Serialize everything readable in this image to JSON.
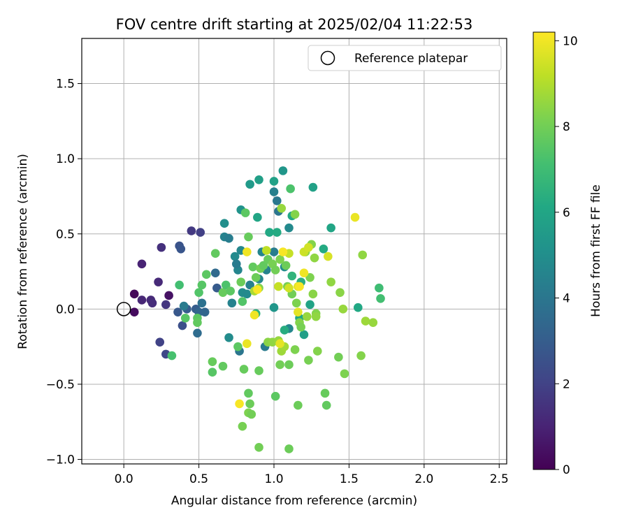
{
  "chart_data": {
    "type": "scatter",
    "title": "FOV centre drift starting at 2025/02/04 11:22:53",
    "xlabel": "Angular distance from reference (arcmin)",
    "ylabel": "Rotation from reference (arcmin)",
    "xlim": [
      -0.28,
      2.55
    ],
    "ylim": [
      -1.03,
      1.8
    ],
    "xticks": [
      0.0,
      0.5,
      1.0,
      1.5,
      2.0,
      2.5
    ],
    "xtick_labels": [
      "0.0",
      "0.5",
      "1.0",
      "1.5",
      "2.0",
      "2.5"
    ],
    "yticks": [
      -1.0,
      -0.5,
      0.0,
      0.5,
      1.0,
      1.5
    ],
    "ytick_labels": [
      "−1.0",
      "−0.5",
      "0.0",
      "0.5",
      "1.0",
      "1.5"
    ],
    "grid": true,
    "legend": {
      "position": "top-right",
      "entries": [
        "Reference platepar"
      ]
    },
    "colorbar": {
      "label": "Hours from first FF file",
      "colormap": "viridis",
      "range": [
        0,
        10.2
      ],
      "ticks": [
        0,
        2,
        4,
        6,
        8,
        10
      ],
      "tick_labels": [
        "0",
        "2",
        "4",
        "6",
        "8",
        "10"
      ]
    },
    "reference_point": {
      "x": 0.0,
      "y": 0.0
    },
    "points": [
      {
        "x": 0.07,
        "y": 0.1,
        "h": 0.2
      },
      {
        "x": 0.07,
        "y": -0.02,
        "h": 0.3
      },
      {
        "x": 0.3,
        "y": 0.09,
        "h": 0.5
      },
      {
        "x": 0.12,
        "y": 0.3,
        "h": 1.0
      },
      {
        "x": 0.12,
        "y": 0.06,
        "h": 1.1
      },
      {
        "x": 0.18,
        "y": 0.06,
        "h": 1.2
      },
      {
        "x": 0.19,
        "y": 0.04,
        "h": 1.3
      },
      {
        "x": 0.23,
        "y": 0.18,
        "h": 1.2
      },
      {
        "x": 0.25,
        "y": 0.41,
        "h": 1.4
      },
      {
        "x": 0.28,
        "y": 0.03,
        "h": 1.6
      },
      {
        "x": 0.24,
        "y": -0.22,
        "h": 2.0
      },
      {
        "x": 0.28,
        "y": -0.3,
        "h": 2.2
      },
      {
        "x": 0.45,
        "y": 0.52,
        "h": 1.7
      },
      {
        "x": 0.51,
        "y": 0.51,
        "h": 1.9
      },
      {
        "x": 0.37,
        "y": 0.42,
        "h": 2.6
      },
      {
        "x": 0.38,
        "y": 0.4,
        "h": 2.7
      },
      {
        "x": 0.36,
        "y": -0.02,
        "h": 2.8
      },
      {
        "x": 0.39,
        "y": -0.11,
        "h": 2.5
      },
      {
        "x": 0.42,
        "y": 0.0,
        "h": 3.0
      },
      {
        "x": 0.48,
        "y": 0.0,
        "h": 3.0
      },
      {
        "x": 0.5,
        "y": -0.02,
        "h": 3.3
      },
      {
        "x": 0.54,
        "y": -0.02,
        "h": 3.3
      },
      {
        "x": 0.52,
        "y": 0.04,
        "h": 3.8
      },
      {
        "x": 0.49,
        "y": -0.16,
        "h": 3.6
      },
      {
        "x": 0.4,
        "y": 0.02,
        "h": 4.2
      },
      {
        "x": 0.61,
        "y": 0.24,
        "h": 3.5
      },
      {
        "x": 0.62,
        "y": 0.14,
        "h": 2.9
      },
      {
        "x": 0.67,
        "y": 0.48,
        "h": 4.5
      },
      {
        "x": 0.7,
        "y": 0.47,
        "h": 4.3
      },
      {
        "x": 0.67,
        "y": 0.57,
        "h": 5.0
      },
      {
        "x": 0.74,
        "y": 0.35,
        "h": 4.8
      },
      {
        "x": 0.76,
        "y": 0.26,
        "h": 4.6
      },
      {
        "x": 0.78,
        "y": 0.39,
        "h": 4.7
      },
      {
        "x": 0.79,
        "y": 0.11,
        "h": 4.9
      },
      {
        "x": 0.82,
        "y": 0.1,
        "h": 4.8
      },
      {
        "x": 0.75,
        "y": 0.3,
        "h": 4.2
      },
      {
        "x": 0.72,
        "y": 0.04,
        "h": 4.5
      },
      {
        "x": 0.77,
        "y": -0.28,
        "h": 4.0
      },
      {
        "x": 0.7,
        "y": -0.19,
        "h": 4.9
      },
      {
        "x": 0.84,
        "y": 0.16,
        "h": 4.4
      },
      {
        "x": 0.9,
        "y": 0.2,
        "h": 4.7
      },
      {
        "x": 0.94,
        "y": -0.25,
        "h": 4.2
      },
      {
        "x": 0.92,
        "y": 0.38,
        "h": 4.6
      },
      {
        "x": 0.95,
        "y": 0.26,
        "h": 4.5
      },
      {
        "x": 1.0,
        "y": 0.38,
        "h": 4.3
      },
      {
        "x": 1.02,
        "y": 0.72,
        "h": 4.1
      },
      {
        "x": 1.0,
        "y": 0.78,
        "h": 4.4
      },
      {
        "x": 1.03,
        "y": 0.65,
        "h": 4.0
      },
      {
        "x": 1.1,
        "y": 0.54,
        "h": 4.8
      },
      {
        "x": 1.07,
        "y": 0.28,
        "h": 4.9
      },
      {
        "x": 1.1,
        "y": -0.13,
        "h": 4.7
      },
      {
        "x": 1.0,
        "y": 0.01,
        "h": 5.3
      },
      {
        "x": 0.84,
        "y": 0.83,
        "h": 5.5
      },
      {
        "x": 0.9,
        "y": 0.86,
        "h": 5.7
      },
      {
        "x": 1.0,
        "y": 0.85,
        "h": 5.8
      },
      {
        "x": 1.06,
        "y": 0.92,
        "h": 5.3
      },
      {
        "x": 0.89,
        "y": 0.61,
        "h": 6.0
      },
      {
        "x": 0.78,
        "y": 0.66,
        "h": 5.2
      },
      {
        "x": 0.97,
        "y": 0.51,
        "h": 6.1
      },
      {
        "x": 1.02,
        "y": 0.51,
        "h": 6.2
      },
      {
        "x": 1.12,
        "y": 0.62,
        "h": 6.1
      },
      {
        "x": 1.26,
        "y": 0.81,
        "h": 5.8
      },
      {
        "x": 1.38,
        "y": 0.54,
        "h": 6.0
      },
      {
        "x": 1.33,
        "y": 0.4,
        "h": 6.2
      },
      {
        "x": 1.24,
        "y": 0.03,
        "h": 5.9
      },
      {
        "x": 1.17,
        "y": -0.06,
        "h": 6.1
      },
      {
        "x": 1.2,
        "y": -0.17,
        "h": 5.7
      },
      {
        "x": 1.07,
        "y": -0.14,
        "h": 6.3
      },
      {
        "x": 1.56,
        "y": 0.01,
        "h": 6.1
      },
      {
        "x": 1.18,
        "y": 0.18,
        "h": 6.4
      },
      {
        "x": 1.12,
        "y": 0.22,
        "h": 6.6
      },
      {
        "x": 1.7,
        "y": 0.14,
        "h": 7.0
      },
      {
        "x": 1.71,
        "y": 0.07,
        "h": 7.1
      },
      {
        "x": 0.88,
        "y": -0.03,
        "h": 6.5
      },
      {
        "x": 0.37,
        "y": 0.16,
        "h": 7.1
      },
      {
        "x": 0.32,
        "y": -0.31,
        "h": 7.2
      },
      {
        "x": 0.41,
        "y": -0.06,
        "h": 7.5
      },
      {
        "x": 0.49,
        "y": -0.06,
        "h": 7.6
      },
      {
        "x": 0.49,
        "y": -0.09,
        "h": 7.7
      },
      {
        "x": 0.5,
        "y": 0.11,
        "h": 7.4
      },
      {
        "x": 0.52,
        "y": 0.16,
        "h": 7.5
      },
      {
        "x": 0.55,
        "y": 0.23,
        "h": 7.6
      },
      {
        "x": 0.61,
        "y": 0.37,
        "h": 7.7
      },
      {
        "x": 0.59,
        "y": -0.35,
        "h": 7.8
      },
      {
        "x": 0.59,
        "y": -0.42,
        "h": 7.5
      },
      {
        "x": 0.66,
        "y": -0.38,
        "h": 7.7
      },
      {
        "x": 0.66,
        "y": 0.11,
        "h": 7.8
      },
      {
        "x": 0.68,
        "y": 0.16,
        "h": 7.3
      },
      {
        "x": 0.71,
        "y": 0.12,
        "h": 7.6
      },
      {
        "x": 0.79,
        "y": 0.05,
        "h": 7.4
      },
      {
        "x": 0.78,
        "y": 0.18,
        "h": 7.9
      },
      {
        "x": 0.76,
        "y": -0.25,
        "h": 7.6
      },
      {
        "x": 0.8,
        "y": -0.4,
        "h": 7.8
      },
      {
        "x": 0.79,
        "y": -0.78,
        "h": 8.1
      },
      {
        "x": 0.83,
        "y": -0.56,
        "h": 7.7
      },
      {
        "x": 0.84,
        "y": -0.63,
        "h": 7.9
      },
      {
        "x": 0.83,
        "y": -0.69,
        "h": 8.2
      },
      {
        "x": 0.85,
        "y": -0.7,
        "h": 8.0
      },
      {
        "x": 0.9,
        "y": -0.41,
        "h": 7.8
      },
      {
        "x": 0.9,
        "y": -0.92,
        "h": 8.0
      },
      {
        "x": 1.1,
        "y": -0.93,
        "h": 7.9
      },
      {
        "x": 1.01,
        "y": -0.58,
        "h": 7.6
      },
      {
        "x": 1.16,
        "y": -0.64,
        "h": 7.9
      },
      {
        "x": 1.34,
        "y": -0.56,
        "h": 7.8
      },
      {
        "x": 1.35,
        "y": -0.64,
        "h": 7.7
      },
      {
        "x": 1.04,
        "y": -0.37,
        "h": 8.0
      },
      {
        "x": 1.1,
        "y": -0.37,
        "h": 7.9
      },
      {
        "x": 1.14,
        "y": -0.27,
        "h": 8.2
      },
      {
        "x": 1.23,
        "y": -0.34,
        "h": 8.1
      },
      {
        "x": 1.29,
        "y": -0.28,
        "h": 8.3
      },
      {
        "x": 1.43,
        "y": -0.32,
        "h": 8.0
      },
      {
        "x": 1.47,
        "y": -0.43,
        "h": 8.2
      },
      {
        "x": 1.58,
        "y": -0.31,
        "h": 8.3
      },
      {
        "x": 0.81,
        "y": 0.64,
        "h": 7.6
      },
      {
        "x": 0.83,
        "y": 0.48,
        "h": 7.8
      },
      {
        "x": 0.86,
        "y": 0.28,
        "h": 7.7
      },
      {
        "x": 0.88,
        "y": 0.21,
        "h": 7.9
      },
      {
        "x": 0.91,
        "y": 0.27,
        "h": 8.0
      },
      {
        "x": 0.93,
        "y": 0.29,
        "h": 7.7
      },
      {
        "x": 0.96,
        "y": 0.33,
        "h": 7.8
      },
      {
        "x": 0.99,
        "y": 0.3,
        "h": 8.1
      },
      {
        "x": 1.01,
        "y": 0.26,
        "h": 8.0
      },
      {
        "x": 1.04,
        "y": 0.33,
        "h": 8.2
      },
      {
        "x": 1.08,
        "y": 0.29,
        "h": 7.9
      },
      {
        "x": 1.11,
        "y": 0.8,
        "h": 7.3
      },
      {
        "x": 1.14,
        "y": 0.63,
        "h": 8.3
      },
      {
        "x": 1.05,
        "y": 0.67,
        "h": 8.6
      },
      {
        "x": 1.09,
        "y": 0.15,
        "h": 8.1
      },
      {
        "x": 1.12,
        "y": 0.1,
        "h": 8.0
      },
      {
        "x": 1.15,
        "y": 0.04,
        "h": 8.2
      },
      {
        "x": 1.17,
        "y": -0.09,
        "h": 8.3
      },
      {
        "x": 1.18,
        "y": -0.12,
        "h": 8.1
      },
      {
        "x": 1.21,
        "y": 0.38,
        "h": 8.4
      },
      {
        "x": 1.25,
        "y": 0.43,
        "h": 8.3
      },
      {
        "x": 1.27,
        "y": 0.34,
        "h": 8.5
      },
      {
        "x": 1.24,
        "y": 0.21,
        "h": 8.2
      },
      {
        "x": 1.26,
        "y": 0.1,
        "h": 8.4
      },
      {
        "x": 1.28,
        "y": -0.03,
        "h": 8.3
      },
      {
        "x": 1.28,
        "y": -0.05,
        "h": 8.5
      },
      {
        "x": 1.22,
        "y": -0.05,
        "h": 8.6
      },
      {
        "x": 1.38,
        "y": 0.18,
        "h": 8.5
      },
      {
        "x": 1.44,
        "y": 0.11,
        "h": 8.4
      },
      {
        "x": 1.46,
        "y": 0.0,
        "h": 8.6
      },
      {
        "x": 1.59,
        "y": 0.36,
        "h": 8.5
      },
      {
        "x": 1.61,
        "y": -0.08,
        "h": 8.7
      },
      {
        "x": 1.66,
        "y": -0.09,
        "h": 8.6
      },
      {
        "x": 0.96,
        "y": -0.22,
        "h": 8.4
      },
      {
        "x": 0.99,
        "y": -0.22,
        "h": 8.5
      },
      {
        "x": 1.03,
        "y": -0.21,
        "h": 8.6
      },
      {
        "x": 1.05,
        "y": -0.28,
        "h": 8.7
      },
      {
        "x": 1.07,
        "y": -0.25,
        "h": 8.8
      },
      {
        "x": 0.9,
        "y": 0.14,
        "h": 8.3
      },
      {
        "x": 0.87,
        "y": 0.12,
        "h": 8.9
      },
      {
        "x": 0.95,
        "y": 0.39,
        "h": 9.2
      },
      {
        "x": 1.1,
        "y": 0.37,
        "h": 9.3
      },
      {
        "x": 1.2,
        "y": 0.38,
        "h": 9.4
      },
      {
        "x": 1.23,
        "y": 0.41,
        "h": 9.5
      },
      {
        "x": 1.36,
        "y": 0.35,
        "h": 9.6
      },
      {
        "x": 1.03,
        "y": 0.15,
        "h": 9.3
      },
      {
        "x": 1.1,
        "y": 0.14,
        "h": 9.5
      },
      {
        "x": 1.16,
        "y": 0.15,
        "h": 9.7
      },
      {
        "x": 1.16,
        "y": -0.02,
        "h": 9.8
      },
      {
        "x": 1.04,
        "y": -0.23,
        "h": 9.8
      },
      {
        "x": 0.82,
        "y": -0.23,
        "h": 9.9
      },
      {
        "x": 0.87,
        "y": -0.04,
        "h": 10.0
      },
      {
        "x": 0.89,
        "y": 0.13,
        "h": 10.1
      },
      {
        "x": 0.82,
        "y": 0.38,
        "h": 10.0
      },
      {
        "x": 1.06,
        "y": 0.38,
        "h": 10.1
      },
      {
        "x": 1.2,
        "y": 0.24,
        "h": 10.0
      },
      {
        "x": 1.17,
        "y": 0.15,
        "h": 10.1
      },
      {
        "x": 1.54,
        "y": 0.61,
        "h": 9.9
      },
      {
        "x": 0.77,
        "y": -0.63,
        "h": 10.1
      }
    ]
  }
}
